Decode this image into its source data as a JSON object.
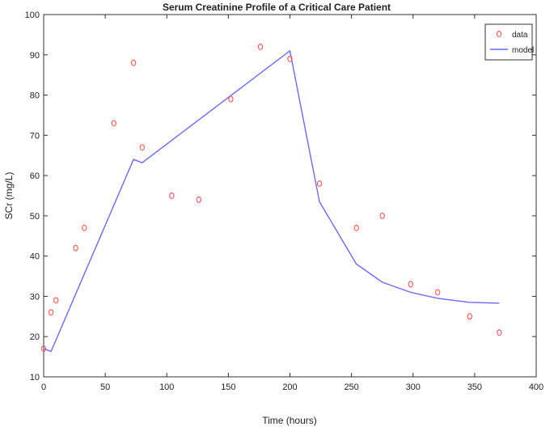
{
  "chart_data": {
    "type": "scatter",
    "title": "Serum Creatinine Profile of a Critical Care Patient",
    "xlabel": "Time (hours)",
    "ylabel": "SCr (mg/L)",
    "xlim": [
      0,
      400
    ],
    "ylim": [
      10,
      100
    ],
    "xticks": [
      0,
      50,
      100,
      150,
      200,
      250,
      300,
      350,
      400
    ],
    "yticks": [
      10,
      20,
      30,
      40,
      50,
      60,
      70,
      80,
      90,
      100
    ],
    "grid": false,
    "legend_position": "top-right",
    "series": [
      {
        "name": "data",
        "kind": "scatter",
        "marker": "circle",
        "color": "#ff5555",
        "points": [
          {
            "x": 0,
            "y": 17
          },
          {
            "x": 6,
            "y": 26
          },
          {
            "x": 10,
            "y": 29
          },
          {
            "x": 26,
            "y": 42
          },
          {
            "x": 33,
            "y": 47
          },
          {
            "x": 57,
            "y": 73
          },
          {
            "x": 73,
            "y": 88
          },
          {
            "x": 80,
            "y": 67
          },
          {
            "x": 104,
            "y": 55
          },
          {
            "x": 126,
            "y": 54
          },
          {
            "x": 152,
            "y": 79
          },
          {
            "x": 176,
            "y": 92
          },
          {
            "x": 200,
            "y": 89
          },
          {
            "x": 224,
            "y": 58
          },
          {
            "x": 254,
            "y": 47
          },
          {
            "x": 275,
            "y": 50
          },
          {
            "x": 298,
            "y": 33
          },
          {
            "x": 320,
            "y": 31
          },
          {
            "x": 346,
            "y": 25
          },
          {
            "x": 370,
            "y": 21
          }
        ]
      },
      {
        "name": "model",
        "kind": "line",
        "color": "#6a6aff",
        "points": [
          {
            "x": 0,
            "y": 17
          },
          {
            "x": 6,
            "y": 16.3
          },
          {
            "x": 73,
            "y": 64
          },
          {
            "x": 80,
            "y": 63.2
          },
          {
            "x": 200,
            "y": 91
          },
          {
            "x": 224,
            "y": 53.5
          },
          {
            "x": 254,
            "y": 38
          },
          {
            "x": 275,
            "y": 33.5
          },
          {
            "x": 298,
            "y": 31
          },
          {
            "x": 320,
            "y": 29.5
          },
          {
            "x": 346,
            "y": 28.5
          },
          {
            "x": 370,
            "y": 28.3
          }
        ]
      }
    ]
  }
}
